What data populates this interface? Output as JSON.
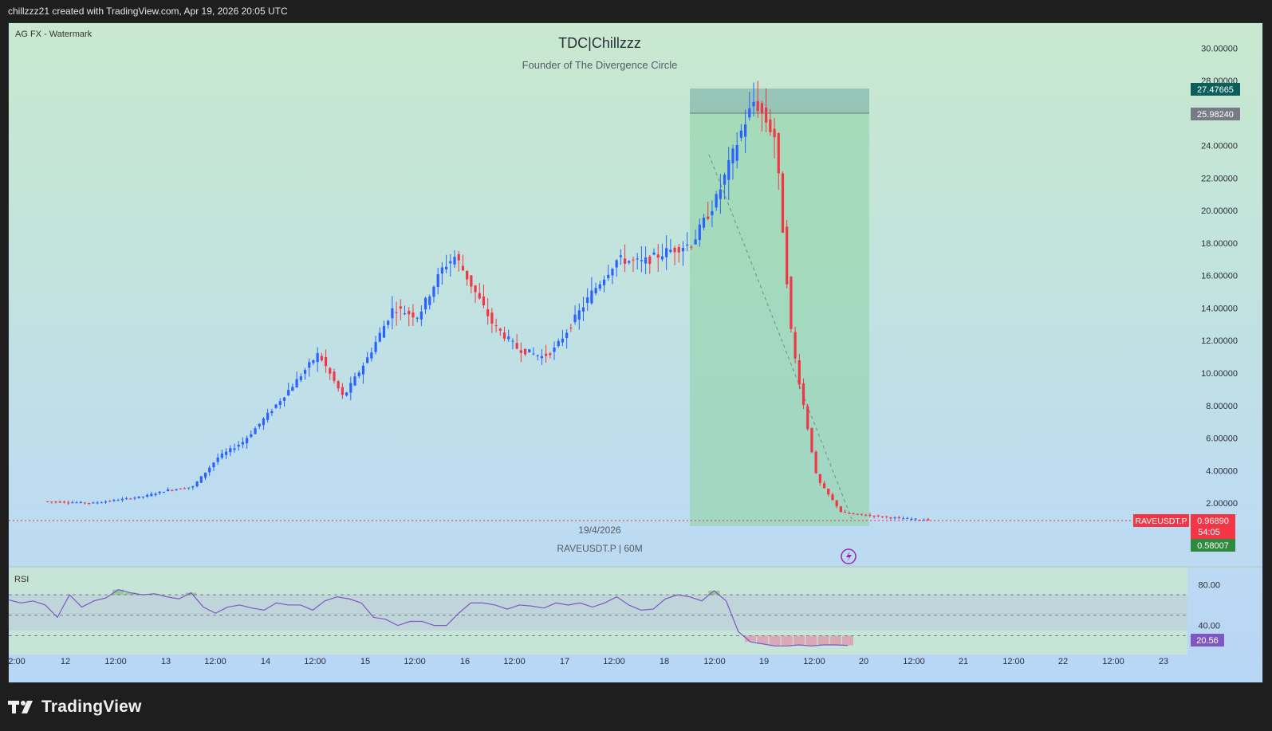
{
  "header": {
    "credit": "chillzzz21 created with TradingView.com, Apr 19, 2026 20:05 UTC"
  },
  "chart_panel": {
    "watermark_label": "AG FX - Watermark",
    "title": "TDC|Chillzzz",
    "subtitle": "Founder of The Divergence Circle",
    "date_label": "19/4/2026",
    "symbol_label": "RAVEUSDT.P | 60M"
  },
  "price_tags": {
    "position_top": "27.47665",
    "position_entry": "25.98240",
    "symbol": "RAVEUSDT.P",
    "last_price": "0.96890",
    "countdown": "54:05",
    "position_bottom": "0.58007",
    "rsi_value": "20.56"
  },
  "footer": {
    "brand": "TradingView"
  },
  "colors": {
    "up_candle": "#2962ff",
    "down_candle": "#f23645",
    "rsi_line": "#7e57c2",
    "profit_zone": "#8fd3a6",
    "stop_zone": "#6fa9a0",
    "tag_top": "#0b5e5a",
    "tag_entry": "#787b86",
    "tag_bottom": "#2e8b3e",
    "tag_rsi": "#7e57c2",
    "tag_price": "#f23645"
  },
  "chart_data": [
    {
      "type": "candlestick",
      "title": "TDC|Chillzzz",
      "subtitle": "Founder of The Divergence Circle",
      "symbol": "RAVEUSDT.P",
      "timeframe": "60M",
      "x_ticks": [
        "2:00",
        "12",
        "12:00",
        "13",
        "12:00",
        "14",
        "12:00",
        "15",
        "12:00",
        "16",
        "12:00",
        "17",
        "12:00",
        "18",
        "12:00",
        "19",
        "12:00",
        "20",
        "12:00",
        "21",
        "12:00",
        "22",
        "12:00",
        "23"
      ],
      "y_ticks": [
        "2.00000",
        "4.00000",
        "6.00000",
        "8.00000",
        "10.00000",
        "12.00000",
        "14.00000",
        "16.00000",
        "18.00000",
        "20.00000",
        "22.00000",
        "24.00000",
        "28.00000",
        "30.00000"
      ],
      "ylim": [
        0,
        30
      ],
      "grid": false,
      "trend_points": [
        [
          "11 00:00",
          2.1
        ],
        [
          "11 12:00",
          2.0
        ],
        [
          "12 00:00",
          2.4
        ],
        [
          "12 06:00",
          2.8
        ],
        [
          "12 12:00",
          3.0
        ],
        [
          "12 18:00",
          4.8
        ],
        [
          "13 00:00",
          5.8
        ],
        [
          "13 06:00",
          7.5
        ],
        [
          "13 12:00",
          9.3
        ],
        [
          "13 18:00",
          11.2
        ],
        [
          "14 00:00",
          8.5
        ],
        [
          "14 06:00",
          11.0
        ],
        [
          "14 12:00",
          14.0
        ],
        [
          "14 18:00",
          13.5
        ],
        [
          "15 00:00",
          16.5
        ],
        [
          "15 03:00",
          17.2
        ],
        [
          "15 12:00",
          13.0
        ],
        [
          "15 18:00",
          11.5
        ],
        [
          "16 00:00",
          11.0
        ],
        [
          "16 03:00",
          11.5
        ],
        [
          "16 12:00",
          15.0
        ],
        [
          "16 18:00",
          17.0
        ],
        [
          "17 00:00",
          16.8
        ],
        [
          "17 06:00",
          17.5
        ],
        [
          "17 12:00",
          18.0
        ],
        [
          "17 18:00",
          20.8
        ],
        [
          "18 00:00",
          25.0
        ],
        [
          "18 03:00",
          26.8
        ],
        [
          "18 08:00",
          24.5
        ],
        [
          "18 12:00",
          12.0
        ],
        [
          "18 18:00",
          3.5
        ],
        [
          "19 00:00",
          1.4
        ],
        [
          "19 12:00",
          1.1
        ],
        [
          "19 20:00",
          0.97
        ]
      ],
      "position": {
        "top": 27.47665,
        "entry": 25.9824,
        "target": 0.58007
      },
      "last_price": 0.9689
    },
    {
      "type": "line",
      "title": "RSI",
      "y_ticks": [
        "80.00",
        "40.00"
      ],
      "ylim": [
        0,
        100
      ],
      "levels": [
        70,
        50,
        30
      ],
      "series": [
        {
          "values": [
            65,
            62,
            64,
            60,
            48,
            70,
            58,
            64,
            67,
            75,
            72,
            70,
            71,
            68,
            66,
            72,
            58,
            52,
            58,
            60,
            57,
            55,
            62,
            60,
            60,
            55,
            64,
            68,
            66,
            62,
            48,
            46,
            40,
            44,
            44,
            40,
            40,
            52,
            62,
            62,
            60,
            56,
            60,
            59,
            57,
            62,
            60,
            62,
            58,
            62,
            68,
            60,
            55,
            56,
            66,
            70,
            68,
            64,
            74,
            64,
            34,
            24,
            22,
            20,
            20,
            21,
            20,
            21,
            21,
            20.56
          ]
        }
      ],
      "last_value": 20.56
    }
  ]
}
